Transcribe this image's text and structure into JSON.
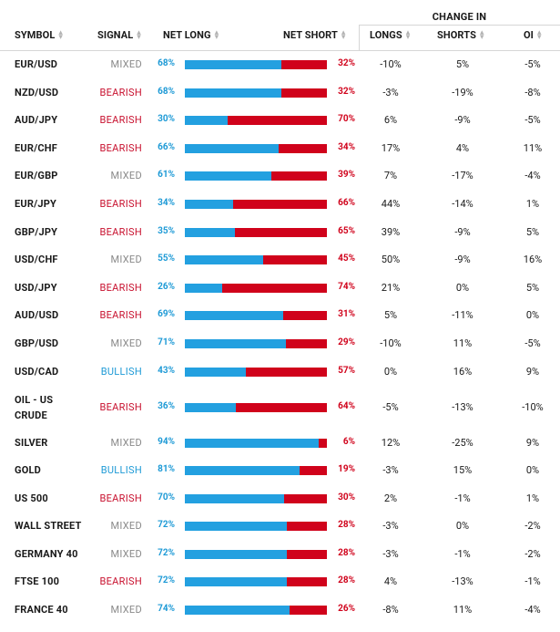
{
  "header": {
    "change_in": "CHANGE IN",
    "symbol": "SYMBOL",
    "signal": "SIGNAL",
    "net_long": "NET LONG",
    "net_short": "NET SHORT",
    "longs": "LONGS",
    "shorts": "SHORTS",
    "oi": "OI"
  },
  "colors": {
    "long": "#23a0e0",
    "short": "#d0021b",
    "bearish": "#c8102e",
    "bullish": "#1e9ad6",
    "mixed": "#8a8a8a"
  },
  "rows": [
    {
      "symbol": "EUR/USD",
      "signal": "MIXED",
      "long": 68,
      "long_label": "68%",
      "short_label": "32%",
      "longs": "-10%",
      "shorts": "5%",
      "oi": "-5%"
    },
    {
      "symbol": "NZD/USD",
      "signal": "BEARISH",
      "long": 68,
      "long_label": "68%",
      "short_label": "32%",
      "longs": "-3%",
      "shorts": "-19%",
      "oi": "-8%"
    },
    {
      "symbol": "AUD/JPY",
      "signal": "BEARISH",
      "long": 30,
      "long_label": "30%",
      "short_label": "70%",
      "longs": "6%",
      "shorts": "-9%",
      "oi": "-5%"
    },
    {
      "symbol": "EUR/CHF",
      "signal": "BEARISH",
      "long": 66,
      "long_label": "66%",
      "short_label": "34%",
      "longs": "17%",
      "shorts": "4%",
      "oi": "11%"
    },
    {
      "symbol": "EUR/GBP",
      "signal": "MIXED",
      "long": 61,
      "long_label": "61%",
      "short_label": "39%",
      "longs": "7%",
      "shorts": "-17%",
      "oi": "-4%"
    },
    {
      "symbol": "EUR/JPY",
      "signal": "BEARISH",
      "long": 34,
      "long_label": "34%",
      "short_label": "66%",
      "longs": "44%",
      "shorts": "-14%",
      "oi": "1%"
    },
    {
      "symbol": "GBP/JPY",
      "signal": "BEARISH",
      "long": 35,
      "long_label": "35%",
      "short_label": "65%",
      "longs": "39%",
      "shorts": "-9%",
      "oi": "5%"
    },
    {
      "symbol": "USD/CHF",
      "signal": "MIXED",
      "long": 55,
      "long_label": "55%",
      "short_label": "45%",
      "longs": "50%",
      "shorts": "-9%",
      "oi": "16%"
    },
    {
      "symbol": "USD/JPY",
      "signal": "BEARISH",
      "long": 26,
      "long_label": "26%",
      "short_label": "74%",
      "longs": "21%",
      "shorts": "0%",
      "oi": "5%"
    },
    {
      "symbol": "AUD/USD",
      "signal": "BEARISH",
      "long": 69,
      "long_label": "69%",
      "short_label": "31%",
      "longs": "5%",
      "shorts": "-11%",
      "oi": "0%"
    },
    {
      "symbol": "GBP/USD",
      "signal": "MIXED",
      "long": 71,
      "long_label": "71%",
      "short_label": "29%",
      "longs": "-10%",
      "shorts": "11%",
      "oi": "-5%"
    },
    {
      "symbol": "USD/CAD",
      "signal": "BULLISH",
      "long": 43,
      "long_label": "43%",
      "short_label": "57%",
      "longs": "0%",
      "shorts": "16%",
      "oi": "9%"
    },
    {
      "symbol": "OIL - US CRUDE",
      "symbol_line1": "OIL - US",
      "symbol_line2": "CRUDE",
      "signal": "BEARISH",
      "long": 36,
      "long_label": "36%",
      "short_label": "64%",
      "longs": "-5%",
      "shorts": "-13%",
      "oi": "-10%"
    },
    {
      "symbol": "SILVER",
      "signal": "MIXED",
      "long": 94,
      "long_label": "94%",
      "short_label": "6%",
      "longs": "12%",
      "shorts": "-25%",
      "oi": "9%"
    },
    {
      "symbol": "GOLD",
      "signal": "BULLISH",
      "long": 81,
      "long_label": "81%",
      "short_label": "19%",
      "longs": "-3%",
      "shorts": "15%",
      "oi": "0%"
    },
    {
      "symbol": "US 500",
      "signal": "BEARISH",
      "long": 70,
      "long_label": "70%",
      "short_label": "30%",
      "longs": "2%",
      "shorts": "-1%",
      "oi": "1%"
    },
    {
      "symbol": "WALL STREET",
      "signal": "MIXED",
      "long": 72,
      "long_label": "72%",
      "short_label": "28%",
      "longs": "-3%",
      "shorts": "0%",
      "oi": "-2%"
    },
    {
      "symbol": "GERMANY 40",
      "signal": "MIXED",
      "long": 72,
      "long_label": "72%",
      "short_label": "28%",
      "longs": "-3%",
      "shorts": "-1%",
      "oi": "-2%"
    },
    {
      "symbol": "FTSE 100",
      "signal": "BEARISH",
      "long": 72,
      "long_label": "72%",
      "short_label": "28%",
      "longs": "4%",
      "shorts": "-13%",
      "oi": "-1%"
    },
    {
      "symbol": "FRANCE 40",
      "signal": "MIXED",
      "long": 74,
      "long_label": "74%",
      "short_label": "26%",
      "longs": "-8%",
      "shorts": "11%",
      "oi": "-4%"
    }
  ]
}
